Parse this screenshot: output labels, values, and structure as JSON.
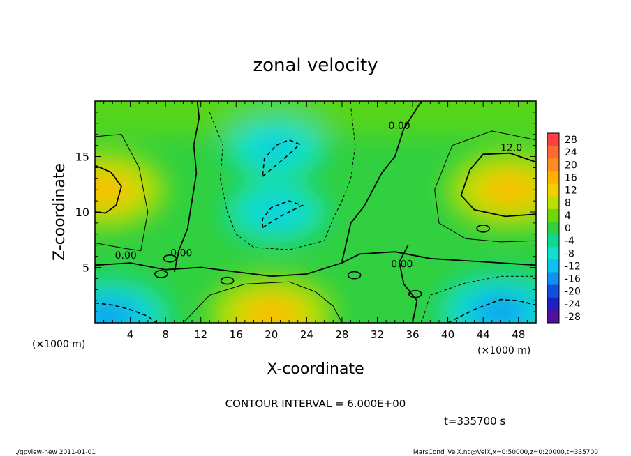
{
  "chart_data": {
    "type": "heatmap",
    "title": "zonal velocity",
    "xlabel": "X-coordinate",
    "ylabel": "Z-coordinate",
    "x_unit_label": "(×1000 m)",
    "y_unit_label": "(×1000 m)",
    "xlim": [
      0,
      50
    ],
    "ylim": [
      0,
      20
    ],
    "x_ticks": [
      4,
      8,
      12,
      16,
      20,
      24,
      28,
      32,
      36,
      40,
      44,
      48
    ],
    "y_ticks": [
      5,
      10,
      15
    ],
    "colorbar": {
      "levels": [
        28,
        24,
        20,
        16,
        12,
        8,
        4,
        0,
        -4,
        -8,
        -12,
        -16,
        -20,
        -24,
        -28
      ],
      "colors": [
        "#ff4040",
        "#ff6a30",
        "#ff8c20",
        "#ffb000",
        "#f0d000",
        "#b8e000",
        "#70d800",
        "#30d040",
        "#10d890",
        "#10e0d0",
        "#10c0f0",
        "#1090f0",
        "#1050e0",
        "#2020c0",
        "#5010a0"
      ]
    },
    "contour_labels": [
      {
        "text": "0.00",
        "x": 3.5,
        "z": 5.8
      },
      {
        "text": "0.00",
        "x": 9.8,
        "z": 6.0
      },
      {
        "text": "0.00",
        "x": 34.5,
        "z": 17.5
      },
      {
        "text": "0.00",
        "x": 34.8,
        "z": 5.0
      },
      {
        "text": "12.0",
        "x": 47.2,
        "z": 15.5
      }
    ],
    "features": [
      {
        "name": "jet-left",
        "x": 1.0,
        "z": 12.0,
        "value": 14
      },
      {
        "name": "jet-right",
        "x": 47.0,
        "z": 12.0,
        "value": 15
      },
      {
        "name": "jet-bottom-center",
        "x": 20.0,
        "z": 0.8,
        "value": 14
      },
      {
        "name": "min-upper",
        "x": 20.5,
        "z": 15.8,
        "value": -11
      },
      {
        "name": "min-middle",
        "x": 20.5,
        "z": 10.0,
        "value": -11
      },
      {
        "name": "min-bottom-left",
        "x": 1.5,
        "z": 0.5,
        "value": -15
      },
      {
        "name": "min-bottom-right",
        "x": 46.0,
        "z": 1.0,
        "value": -16
      }
    ]
  },
  "contour_interval_label": "CONTOUR INTERVAL = 6.000E+00",
  "time_label": "t=335700 s",
  "footer_left": "./gpview-new  2011-01-01",
  "footer_right": "MarsCond_VelX.nc@VelX,x=0:50000,z=0:20000,t=335700"
}
